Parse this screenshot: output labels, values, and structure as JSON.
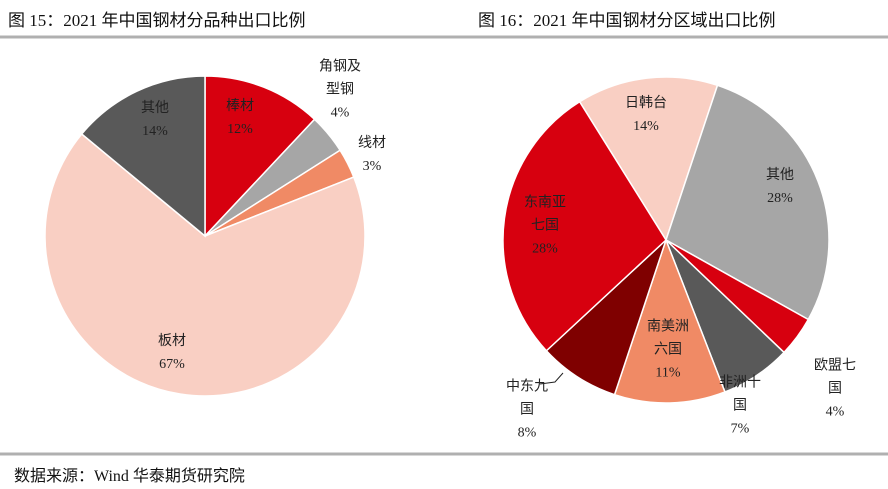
{
  "chart_data": [
    {
      "type": "pie",
      "title": "图 15：2021 年中国钢材分品种出口比例",
      "categories": [
        "棒材",
        "角钢及\n型钢",
        "线材",
        "板材",
        "其他"
      ],
      "values": [
        12,
        4,
        3,
        67,
        14
      ],
      "value_labels": [
        "12%",
        "4%",
        "3%",
        "67%",
        "14%"
      ],
      "colors": [
        "#d7000f",
        "#a6a6a6",
        "#f08a65",
        "#f9cfc3",
        "#595959"
      ]
    },
    {
      "type": "pie",
      "title": "图 16：2021 年中国钢材分区域出口比例",
      "categories": [
        "日韩台",
        "其他",
        "欧盟七\n国",
        "非洲十\n国",
        "南美洲\n六国",
        "中东九\n国",
        "东南亚\n七国"
      ],
      "values": [
        14,
        28,
        4,
        7,
        11,
        8,
        28
      ],
      "value_labels": [
        "14%",
        "28%",
        "4%",
        "7%",
        "11%",
        "8%",
        "28%"
      ],
      "colors": [
        "#f9cfc3",
        "#a6a6a6",
        "#d7000f",
        "#595959",
        "#f08a65",
        "#7f0000",
        "#d7000f"
      ]
    }
  ],
  "source": "数据来源：Wind 华泰期货研究院"
}
